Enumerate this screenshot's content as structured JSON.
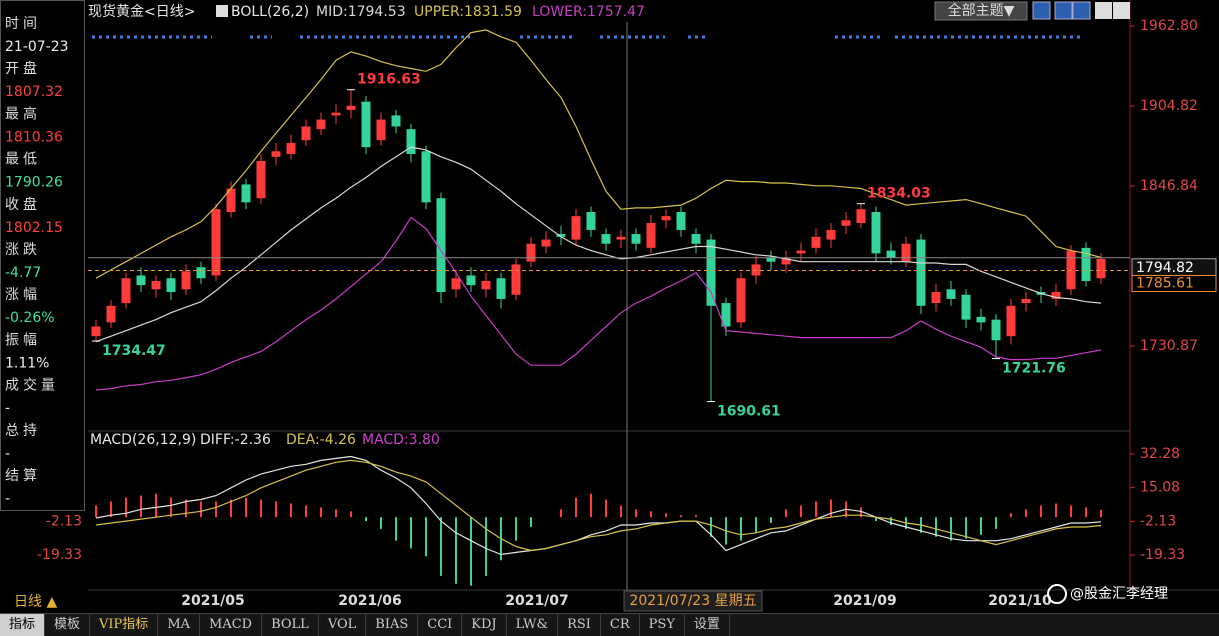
{
  "chart_data": [
    {
      "type": "candlestick",
      "title": "现货黄金<日线>",
      "subtitle": "BOLL(26,2)",
      "open": [
        1738,
        1748,
        1762,
        1782,
        1772,
        1780,
        1772,
        1788,
        1782,
        1828,
        1848,
        1838,
        1868,
        1870,
        1880,
        1888,
        1898,
        1902,
        1908,
        1880,
        1898,
        1888,
        1872,
        1838,
        1772,
        1782,
        1772,
        1780,
        1768,
        1792,
        1803,
        1812,
        1808,
        1828,
        1812,
        1808,
        1812,
        1802,
        1822,
        1828,
        1812,
        1808,
        1762,
        1748,
        1782,
        1795,
        1790,
        1798,
        1802,
        1808,
        1818,
        1820,
        1828,
        1800,
        1792,
        1808,
        1762,
        1772,
        1768,
        1752,
        1750,
        1738,
        1762,
        1770,
        1765,
        1772,
        1802,
        1780
      ],
      "high": [
        1750,
        1764,
        1784,
        1788,
        1782,
        1784,
        1790,
        1792,
        1834,
        1850,
        1852,
        1870,
        1878,
        1884,
        1895,
        1900,
        1906,
        1916.63,
        1912,
        1900,
        1902,
        1892,
        1876,
        1842,
        1786,
        1788,
        1784,
        1784,
        1794,
        1810,
        1814,
        1818,
        1830,
        1832,
        1816,
        1815,
        1816,
        1826,
        1830,
        1832,
        1816,
        1812,
        1766,
        1784,
        1796,
        1800,
        1800,
        1806,
        1816,
        1820,
        1828,
        1834.03,
        1832,
        1806,
        1810,
        1812,
        1776,
        1778,
        1772,
        1758,
        1754,
        1765,
        1770,
        1774,
        1776,
        1804,
        1806,
        1798
      ],
      "low": [
        1734.47,
        1744,
        1758,
        1770,
        1766,
        1764,
        1768,
        1776,
        1778,
        1824,
        1830,
        1834,
        1862,
        1866,
        1876,
        1884,
        1892,
        1896,
        1870,
        1876,
        1885,
        1864,
        1830,
        1762,
        1766,
        1770,
        1766,
        1758,
        1764,
        1788,
        1798,
        1804,
        1804,
        1810,
        1800,
        1802,
        1800,
        1798,
        1816,
        1810,
        1798,
        1690.61,
        1738,
        1744,
        1776,
        1786,
        1784,
        1792,
        1798,
        1802,
        1812,
        1816,
        1792,
        1790,
        1788,
        1754,
        1756,
        1760,
        1744,
        1742,
        1721.76,
        1732,
        1756,
        1762,
        1760,
        1768,
        1774,
        1776
      ],
      "close": [
        1745,
        1760,
        1780,
        1775,
        1778,
        1770,
        1785,
        1780,
        1830,
        1845,
        1835,
        1865,
        1872,
        1878,
        1890,
        1895,
        1900,
        1905,
        1875,
        1895,
        1890,
        1870,
        1835,
        1770,
        1780,
        1775,
        1778,
        1765,
        1790,
        1805,
        1808,
        1810,
        1825,
        1815,
        1805,
        1810,
        1805,
        1820,
        1825,
        1815,
        1805,
        1760,
        1745,
        1780,
        1790,
        1792,
        1795,
        1800,
        1810,
        1815,
        1822,
        1830,
        1798,
        1795,
        1805,
        1760,
        1770,
        1765,
        1750,
        1748,
        1735,
        1760,
        1765,
        1768,
        1770,
        1800,
        1778,
        1794
      ],
      "up_color": "#ff3b3b",
      "down_color": "#35d49a",
      "series": [
        {
          "name": "MID:1794.53",
          "color": "#d8d8d8",
          "values": [
            1734,
            1738,
            1742,
            1746,
            1750,
            1755,
            1759,
            1763,
            1771,
            1780,
            1788,
            1797,
            1806,
            1815,
            1823,
            1831,
            1838,
            1846,
            1853,
            1861,
            1868,
            1875,
            1873,
            1868,
            1864,
            1859,
            1851,
            1843,
            1834,
            1826,
            1818,
            1810,
            1804,
            1800,
            1797,
            1794,
            1795,
            1797,
            1799,
            1801,
            1803,
            1803,
            1801,
            1799,
            1797,
            1796,
            1794,
            1792,
            1792,
            1792,
            1792,
            1792,
            1792,
            1792,
            1792,
            1791,
            1791,
            1790,
            1790,
            1785,
            1781,
            1777,
            1773,
            1769,
            1766,
            1765,
            1763,
            1762
          ]
        },
        {
          "name": "UPPER:1831.59",
          "color": "#d6c24a",
          "values": [
            1780,
            1786,
            1792,
            1798,
            1804,
            1810,
            1815,
            1821,
            1832,
            1845,
            1858,
            1872,
            1885,
            1898,
            1911,
            1924,
            1938,
            1944,
            1941,
            1937,
            1934,
            1932,
            1930,
            1935,
            1947,
            1958,
            1960,
            1955,
            1951,
            1938,
            1924,
            1911,
            1890,
            1866,
            1843,
            1830,
            1831,
            1831,
            1832,
            1833,
            1838,
            1845,
            1851,
            1850,
            1850,
            1849,
            1849,
            1848,
            1847,
            1847,
            1846,
            1845,
            1841,
            1837,
            1833,
            1834,
            1835,
            1836,
            1837,
            1834,
            1831,
            1828,
            1825,
            1814,
            1803,
            1800,
            1798,
            1795
          ]
        },
        {
          "name": "LOWER:1757.47",
          "color": "#c83cc8",
          "values": [
            1699,
            1700,
            1702,
            1703,
            1705,
            1706,
            1708,
            1710,
            1714,
            1719,
            1723,
            1727,
            1734,
            1742,
            1750,
            1757,
            1765,
            1774,
            1783,
            1792,
            1807,
            1824,
            1816,
            1800,
            1784,
            1767,
            1753,
            1739,
            1725,
            1717,
            1717,
            1717,
            1725,
            1735,
            1745,
            1755,
            1762,
            1767,
            1773,
            1778,
            1784,
            1770,
            1742,
            1741,
            1740,
            1739,
            1738,
            1737,
            1737,
            1737,
            1737,
            1737,
            1737,
            1737,
            1742,
            1749,
            1743,
            1738,
            1734,
            1730,
            1723,
            1721,
            1721,
            1722,
            1722,
            1724,
            1726,
            1728
          ]
        }
      ],
      "ylim": [
        1670,
        1965.7
      ],
      "yticks": [
        {
          "value": 1962.8,
          "label": "1962.80"
        },
        1904.82,
        1846.84,
        1730.87
      ],
      "last_price": 1794.82,
      "ref_price": 1785.61,
      "x_labels": [
        "2021/05",
        "2021/06",
        "2021/07",
        "2021/09",
        "2021/10"
      ],
      "crosshair_label": "2021/07/23 星期五"
    },
    {
      "type": "macd",
      "title": "MACD(26,12,9)",
      "series": [
        {
          "name": "DIFF:-2.36",
          "color": "#e6e6e6",
          "values": [
            -0.4,
            1,
            2,
            4,
            5,
            6,
            8,
            9,
            11,
            15,
            19,
            22,
            24,
            26,
            27,
            29,
            30,
            31,
            29,
            24,
            20,
            15,
            7,
            -2,
            -8,
            -12,
            -16,
            -19,
            -18,
            -17,
            -16,
            -14,
            -12,
            -9,
            -7,
            -4,
            -4,
            -3,
            -3,
            -2,
            -2,
            -9,
            -17,
            -14,
            -11,
            -8,
            -7,
            -4,
            -1,
            2,
            4,
            3,
            0,
            -3,
            -5,
            -7,
            -9,
            -11,
            -12,
            -12,
            -12,
            -11,
            -9,
            -7,
            -5,
            -3,
            -3,
            -2.36
          ]
        },
        {
          "name": "DEA:-4.26",
          "color": "#d6c24a",
          "values": [
            -4,
            -3,
            -2,
            -1,
            0,
            1,
            2,
            3,
            5,
            8,
            11,
            15,
            18,
            21,
            24,
            26,
            28,
            29,
            28,
            26,
            23,
            21,
            18,
            12,
            6,
            0,
            -6,
            -11,
            -15,
            -17,
            -16,
            -14,
            -12,
            -10,
            -9,
            -7,
            -6,
            -4,
            -3,
            -2,
            -2,
            -4,
            -7,
            -9,
            -8,
            -6,
            -5,
            -3,
            -1,
            0,
            1,
            1,
            0,
            -1,
            -3,
            -4,
            -6,
            -8,
            -10,
            -12,
            -14,
            -12,
            -10,
            -8,
            -6,
            -5,
            -5,
            -4.26
          ]
        },
        {
          "name": "MACD:3.80",
          "color": "#d040d0",
          "up_color": "#ff3b3b",
          "down_color": "#35d49a",
          "values": [
            6,
            8,
            10,
            11,
            12,
            10,
            9,
            8,
            8,
            9,
            10,
            9,
            8,
            7,
            6,
            5,
            4,
            3,
            -2,
            -6,
            -12,
            -16,
            -20,
            -30,
            -34,
            -35,
            -30,
            -22,
            -12,
            -5,
            0,
            4,
            10,
            12,
            9,
            6,
            4,
            3,
            2,
            1,
            1,
            -10,
            -14,
            -12,
            -8,
            -3,
            4,
            6,
            8,
            9,
            8,
            5,
            -2,
            -4,
            -6,
            -8,
            -10,
            -12,
            -11,
            -9,
            -6,
            2,
            4,
            6,
            7,
            6,
            5,
            3.8
          ]
        }
      ],
      "ylim": [
        -37.2,
        43.5
      ],
      "yticks": [
        32.28,
        15.08,
        -2.13,
        -19.33
      ]
    }
  ],
  "info_panel": [
    {
      "label": "时间",
      "value": "21-07-23"
    },
    {
      "label": "开盘",
      "value": 1807.32
    },
    {
      "label": "最高",
      "value": 1810.36
    },
    {
      "label": "最低",
      "value": 1790.26
    },
    {
      "label": "收盘",
      "value": 1802.15
    },
    {
      "label": "涨跌",
      "value": -4.77
    },
    {
      "label": "涨幅",
      "value": "-0.26%"
    },
    {
      "label": "振幅",
      "value": "1.11%"
    },
    {
      "label": "成交量",
      "value": "-"
    },
    {
      "label": "总持",
      "value": "-"
    },
    {
      "label": "结算",
      "value": "-"
    }
  ],
  "period_button": "日线 ▲",
  "theme_button": "全部主题▼",
  "tabs": [
    "指标",
    "模板",
    "VIP指标",
    "MA",
    "MACD",
    "BOLL",
    "VOL",
    "BIAS",
    "CCI",
    "KDJ",
    "LW&",
    "RSI",
    "CR",
    "PSY",
    "设置"
  ],
  "watermark": "@股金汇李经理"
}
